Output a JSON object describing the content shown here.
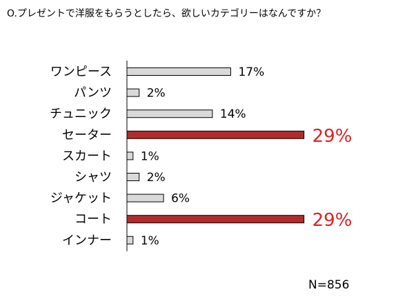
{
  "title": "O.プレゼントで洋服をもらうとしたら、欲しいカテゴリーはなんですか？",
  "sample_size": "N=856",
  "colors": {
    "normal_fill": "#d9d9d9",
    "highlight_fill": "#b22b2b",
    "bar_stroke": "#000000",
    "highlight_label": "#e02020"
  },
  "chart_data": {
    "type": "bar",
    "orientation": "horizontal",
    "categories": [
      "ワンピース",
      "パンツ",
      "チュニック",
      "セーター",
      "スカート",
      "シャツ",
      "ジャケット",
      "コート",
      "インナー"
    ],
    "values": [
      17,
      2,
      14,
      29,
      1,
      2,
      6,
      29,
      1
    ],
    "value_labels": [
      "17%",
      "2%",
      "14%",
      "29%",
      "1%",
      "2%",
      "6%",
      "29%",
      "1%"
    ],
    "highlighted": [
      false,
      false,
      false,
      true,
      false,
      false,
      false,
      true,
      false
    ],
    "unit": "%",
    "grid": false,
    "legend": "none"
  }
}
